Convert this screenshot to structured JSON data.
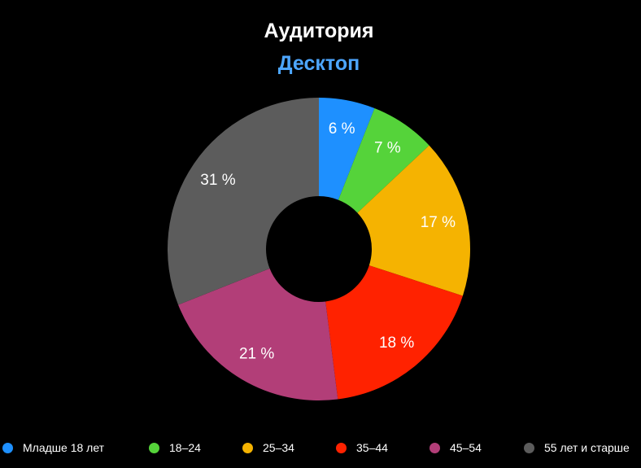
{
  "title": "Аудитория",
  "subtitle": "Десктоп",
  "subtitle_color": "#4da6ff",
  "chart_data": {
    "type": "pie",
    "variant": "donut",
    "title": "Аудитория",
    "subtitle": "Десктоп",
    "start_angle_deg": 0,
    "direction": "clockwise",
    "legend_position": "bottom",
    "unit": "%",
    "slices": [
      {
        "label": "Младше 18 лет",
        "value": 6,
        "value_label": "6 %",
        "color": "#1e90ff"
      },
      {
        "label": "18–24",
        "value": 7,
        "value_label": "7 %",
        "color": "#55d33a"
      },
      {
        "label": "25–34",
        "value": 17,
        "value_label": "17 %",
        "color": "#f5b301"
      },
      {
        "label": "35–44",
        "value": 18,
        "value_label": "18 %",
        "color": "#ff2200"
      },
      {
        "label": "45–54",
        "value": 21,
        "value_label": "21 %",
        "color": "#b23e78"
      },
      {
        "label": "55 лет и старше",
        "value": 31,
        "value_label": "31 %",
        "color": "#5c5c5c"
      }
    ]
  }
}
